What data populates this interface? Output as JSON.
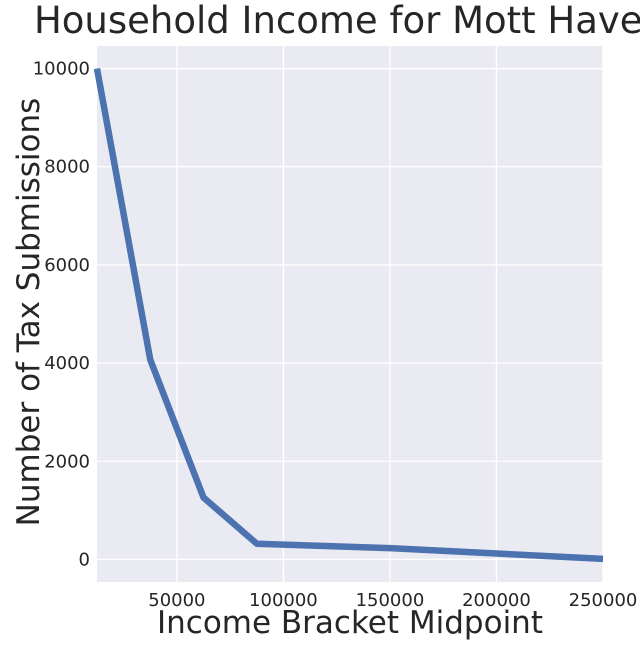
{
  "chart_data": {
    "type": "line",
    "title": "Household Income for Mott Haven",
    "xlabel": "Income Bracket Midpoint",
    "ylabel": "Number of Tax Submissions",
    "xlim": [
      12500,
      250000
    ],
    "ylim": [
      -460,
      10460
    ],
    "xticks": [
      50000,
      100000,
      150000,
      200000,
      250000
    ],
    "yticks": [
      0,
      2000,
      4000,
      6000,
      8000,
      10000
    ],
    "grid": true,
    "legend": "none",
    "series": [
      {
        "color": "#4c72b0",
        "points": [
          {
            "x": 12500,
            "y": 10000
          },
          {
            "x": 37500,
            "y": 4070
          },
          {
            "x": 62500,
            "y": 1260
          },
          {
            "x": 87500,
            "y": 320
          },
          {
            "x": 150000,
            "y": 230
          },
          {
            "x": 250000,
            "y": 10
          }
        ]
      }
    ],
    "colors": {
      "background": "#eaeaf2",
      "grid": "#ffffff",
      "line": "#4c72b0",
      "text": "#262626"
    }
  }
}
